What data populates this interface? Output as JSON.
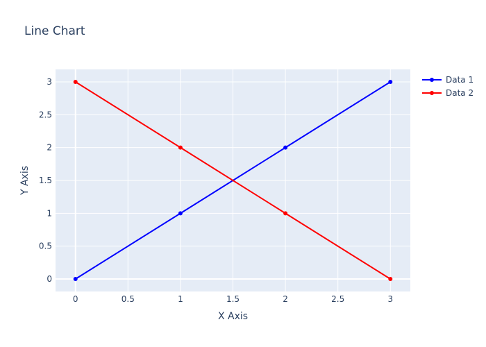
{
  "chart_data": {
    "type": "line",
    "title": "Line Chart",
    "xlabel": "X Axis",
    "ylabel": "Y Axis",
    "xlim": [
      -0.19,
      3.19
    ],
    "ylim": [
      -0.19,
      3.19
    ],
    "x_ticks": [
      0,
      0.5,
      1,
      1.5,
      2,
      2.5,
      3
    ],
    "x_tick_labels": [
      "0",
      "0.5",
      "1",
      "1.5",
      "2",
      "2.5",
      "3"
    ],
    "y_ticks": [
      0,
      0.5,
      1,
      1.5,
      2,
      2.5,
      3
    ],
    "y_tick_labels": [
      "0",
      "0.5",
      "1",
      "1.5",
      "2",
      "2.5",
      "3"
    ],
    "grid": true,
    "legend_position": "top-right",
    "series": [
      {
        "name": "Data 1",
        "color": "#0000ff",
        "x": [
          0,
          1,
          2,
          3
        ],
        "y": [
          0,
          1,
          2,
          3
        ]
      },
      {
        "name": "Data 2",
        "color": "#ff0000",
        "x": [
          0,
          1,
          2,
          3
        ],
        "y": [
          3,
          2,
          1,
          0
        ]
      }
    ]
  }
}
